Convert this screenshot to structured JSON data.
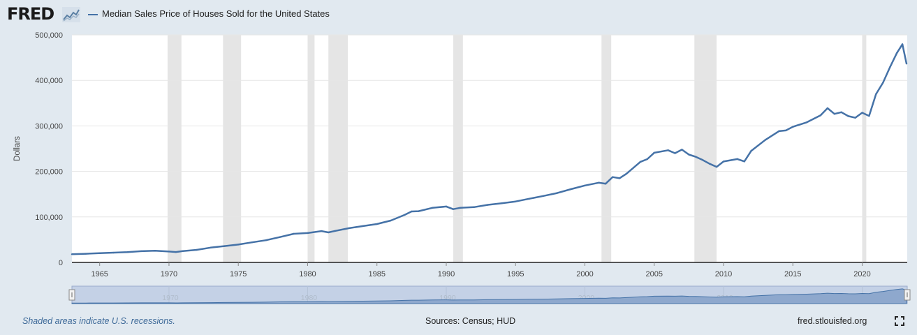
{
  "logo_text": "FRED",
  "logo_icon": "fred-sparkline-icon",
  "expand_icon": "fullscreen-expand-icon",
  "footer": {
    "note": "Shaded areas indicate U.S. recessions.",
    "sources": "Sources: Census; HUD",
    "url": "fred.stlouisfed.org"
  },
  "chart_data": {
    "type": "line",
    "title": "",
    "legend": [
      "Median Sales Price of Houses Sold for the United States"
    ],
    "ylabel": "Dollars",
    "xlim": [
      1963.0,
      2023.25
    ],
    "ylim": [
      0,
      500000
    ],
    "yticks": [
      0,
      100000,
      200000,
      300000,
      400000,
      500000
    ],
    "yticklabels": [
      "0",
      "100,000",
      "200,000",
      "300,000",
      "400,000",
      "500,000"
    ],
    "xticks": [
      1965,
      1970,
      1975,
      1980,
      1985,
      1990,
      1995,
      2000,
      2005,
      2010,
      2015,
      2020
    ],
    "nav_ticks": [
      1970,
      1980,
      1990,
      2000,
      2010,
      2020
    ],
    "grid": true,
    "line_color": "#4572a7",
    "recessions": [
      [
        1969.9,
        1970.9
      ],
      [
        1973.9,
        1975.2
      ],
      [
        1980.0,
        1980.5
      ],
      [
        1981.5,
        1982.9
      ],
      [
        1990.5,
        1991.2
      ],
      [
        2001.2,
        2001.9
      ],
      [
        2007.9,
        2009.5
      ],
      [
        2020.0,
        2020.3
      ]
    ],
    "series": [
      {
        "name": "Median Sales Price of Houses Sold for the United States",
        "x": [
          1963.0,
          1964.0,
          1965.0,
          1966.0,
          1967.0,
          1968.0,
          1969.0,
          1970.0,
          1970.5,
          1971.0,
          1972.0,
          1973.0,
          1974.0,
          1975.0,
          1976.0,
          1977.0,
          1978.0,
          1979.0,
          1980.0,
          1981.0,
          1981.5,
          1982.0,
          1983.0,
          1984.0,
          1985.0,
          1986.0,
          1987.0,
          1987.5,
          1988.0,
          1989.0,
          1990.0,
          1990.5,
          1991.0,
          1992.0,
          1993.0,
          1994.0,
          1995.0,
          1996.0,
          1997.0,
          1998.0,
          1999.0,
          2000.0,
          2001.0,
          2001.5,
          2002.0,
          2002.5,
          2003.0,
          2004.0,
          2004.5,
          2005.0,
          2006.0,
          2006.5,
          2007.0,
          2007.5,
          2008.0,
          2008.5,
          2009.0,
          2009.5,
          2010.0,
          2011.0,
          2011.5,
          2012.0,
          2013.0,
          2014.0,
          2014.5,
          2015.0,
          2016.0,
          2017.0,
          2017.5,
          2018.0,
          2018.5,
          2019.0,
          2019.5,
          2020.0,
          2020.5,
          2021.0,
          2021.5,
          2022.0,
          2022.5,
          2022.9,
          2023.2
        ],
        "values": [
          18000,
          19000,
          20200,
          21400,
          22500,
          24700,
          25600,
          23900,
          22800,
          25000,
          27600,
          32500,
          35900,
          39300,
          44200,
          48800,
          55700,
          62900,
          64600,
          68900,
          66000,
          69300,
          75300,
          79900,
          84300,
          92000,
          104500,
          112000,
          112500,
          120000,
          122900,
          117000,
          120000,
          121500,
          126500,
          130000,
          133900,
          140000,
          146000,
          152500,
          161000,
          169000,
          175200,
          173000,
          187600,
          185000,
          195000,
          221000,
          227000,
          240900,
          246500,
          240000,
          247900,
          237000,
          232100,
          225000,
          216700,
          210000,
          221800,
          227200,
          222000,
          245200,
          268900,
          288500,
          290000,
          298000,
          307800,
          323100,
          339000,
          326400,
          330000,
          321500,
          318000,
          329000,
          322000,
          369800,
          395000,
          428700,
          460000,
          479500,
          436800
        ]
      }
    ]
  }
}
